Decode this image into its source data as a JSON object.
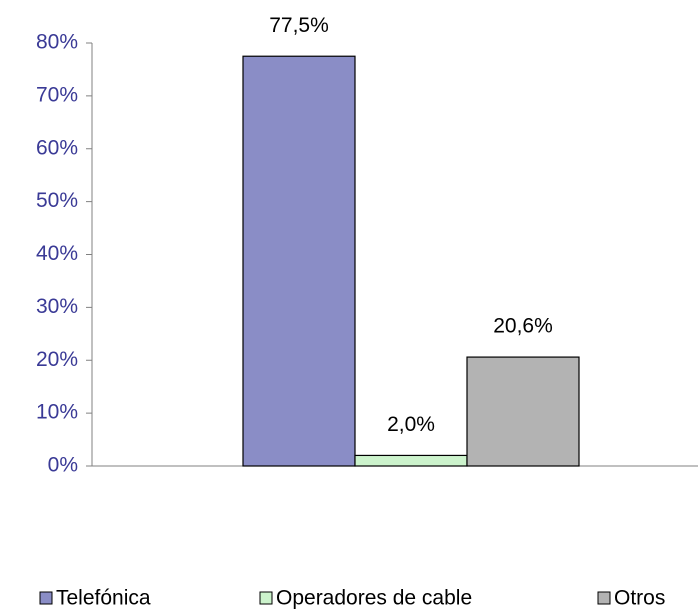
{
  "chart_data": {
    "type": "bar",
    "categories": [
      null
    ],
    "series": [
      {
        "name": "Telefónica",
        "color": "#8a8dc6",
        "values": [
          77.5
        ],
        "value_labels": [
          "77,5%"
        ]
      },
      {
        "name": "Operadores de cable",
        "color": "#ccf3cc",
        "values": [
          2.0
        ],
        "value_labels": [
          "2,0%"
        ]
      },
      {
        "name": "Otros",
        "color": "#b3b3b3",
        "values": [
          20.6
        ],
        "value_labels": [
          "20,6%"
        ]
      }
    ],
    "ylim": [
      0,
      80
    ],
    "yticks": [
      {
        "value": 0,
        "label": "0%"
      },
      {
        "value": 10,
        "label": "10%"
      },
      {
        "value": 20,
        "label": "20%"
      },
      {
        "value": 30,
        "label": "30%"
      },
      {
        "value": 40,
        "label": "40%"
      },
      {
        "value": 50,
        "label": "50%"
      },
      {
        "value": 60,
        "label": "60%"
      },
      {
        "value": 70,
        "label": "70%"
      },
      {
        "value": 80,
        "label": "80%"
      }
    ],
    "grid": false
  }
}
